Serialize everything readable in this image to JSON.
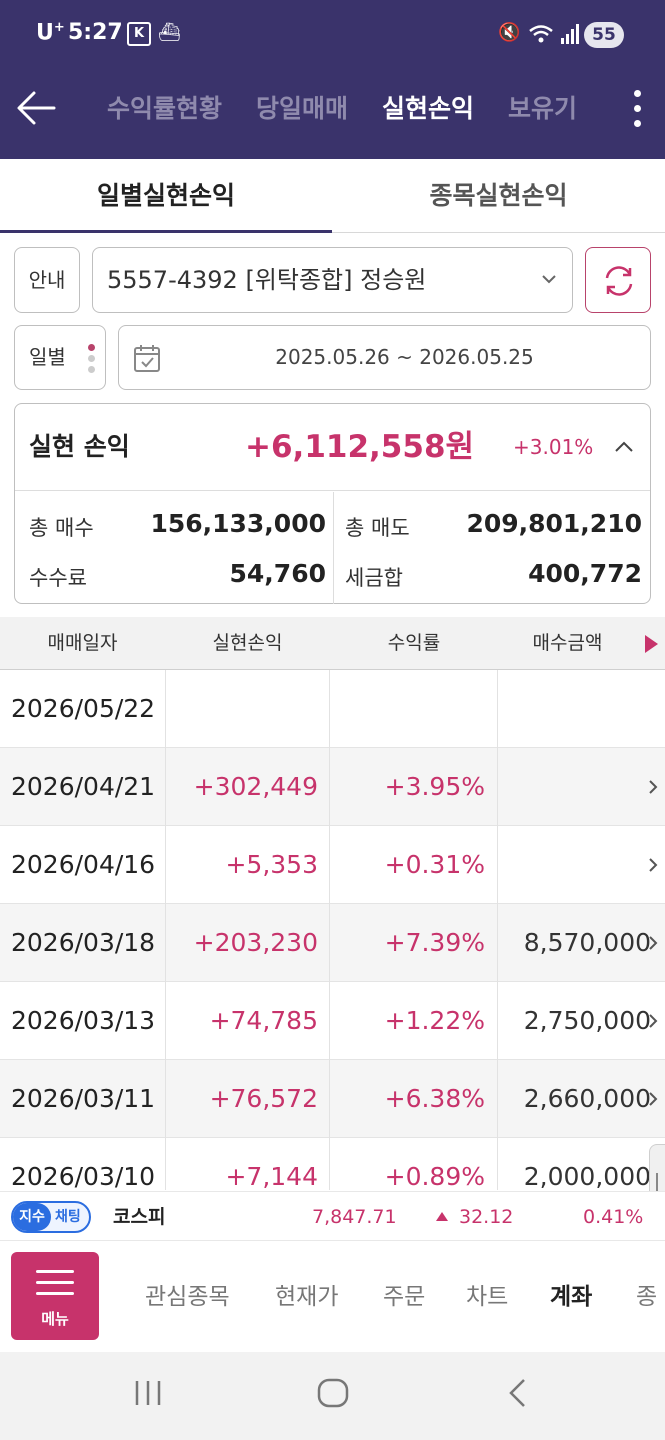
{
  "status_bar": {
    "carrier": "U",
    "carrier_sup": "+",
    "time": "5:27",
    "k_badge": "K",
    "battery": "55"
  },
  "header": {
    "tabs": [
      {
        "label": "수익률현황"
      },
      {
        "label": "당일매매"
      },
      {
        "label": "실현손익",
        "active": true
      },
      {
        "label": "보유기"
      }
    ]
  },
  "subtabs": [
    {
      "label": "일별실현손익",
      "active": true
    },
    {
      "label": "종목실현손익"
    }
  ],
  "controls": {
    "guide_label": "안내",
    "account": "5557-4392 [위탁종합] 정승원",
    "period_label": "일별",
    "date_range": "2025.05.26 ~ 2026.05.25"
  },
  "summary": {
    "label": "실현 손익",
    "value": "+6,112,558원",
    "rate": "+3.01%",
    "total_buy_label": "총 매수",
    "total_buy": "156,133,000",
    "total_sell_label": "총 매도",
    "total_sell": "209,801,210",
    "fee_label": "수수료",
    "fee": "54,760",
    "tax_label": "세금합",
    "tax": "400,772"
  },
  "table": {
    "headers": [
      "매매일자",
      "실현손익",
      "수익률",
      "매수금액"
    ],
    "rows": [
      {
        "date": "2026/05/22",
        "pl": "",
        "rate": "",
        "buy": ""
      },
      {
        "date": "2026/04/21",
        "pl": "+302,449",
        "rate": "+3.95%",
        "buy": ""
      },
      {
        "date": "2026/04/16",
        "pl": "+5,353",
        "rate": "+0.31%",
        "buy": ""
      },
      {
        "date": "2026/03/18",
        "pl": "+203,230",
        "rate": "+7.39%",
        "buy": "8,570,000"
      },
      {
        "date": "2026/03/13",
        "pl": "+74,785",
        "rate": "+1.22%",
        "buy": "2,750,000"
      },
      {
        "date": "2026/03/11",
        "pl": "+76,572",
        "rate": "+6.38%",
        "buy": "2,660,000"
      },
      {
        "date": "2026/03/10",
        "pl": "+7,144",
        "rate": "+0.89%",
        "buy": "2,000,000"
      }
    ]
  },
  "ticker": {
    "pill_a": "지수",
    "pill_b": "채팅",
    "name": "코스피",
    "value": "7,847.71",
    "change": "32.12",
    "percent": "0.41%"
  },
  "bottom_nav": {
    "menu_label": "메뉴",
    "items": [
      {
        "label": "관심종목"
      },
      {
        "label": "현재가"
      },
      {
        "label": "주문"
      },
      {
        "label": "차트"
      },
      {
        "label": "계좌",
        "active": true
      },
      {
        "label": "종"
      }
    ]
  },
  "colors": {
    "header_bg": "#3a336b",
    "accent": "#c7336b",
    "index_blue": "#2b6de0"
  },
  "icons": [
    "back-arrow-icon",
    "kebab-menu-icon",
    "chevron-down-icon",
    "refresh-icon",
    "calendar-icon",
    "chevron-up-icon",
    "chevron-right-icon",
    "hamburger-icon"
  ]
}
